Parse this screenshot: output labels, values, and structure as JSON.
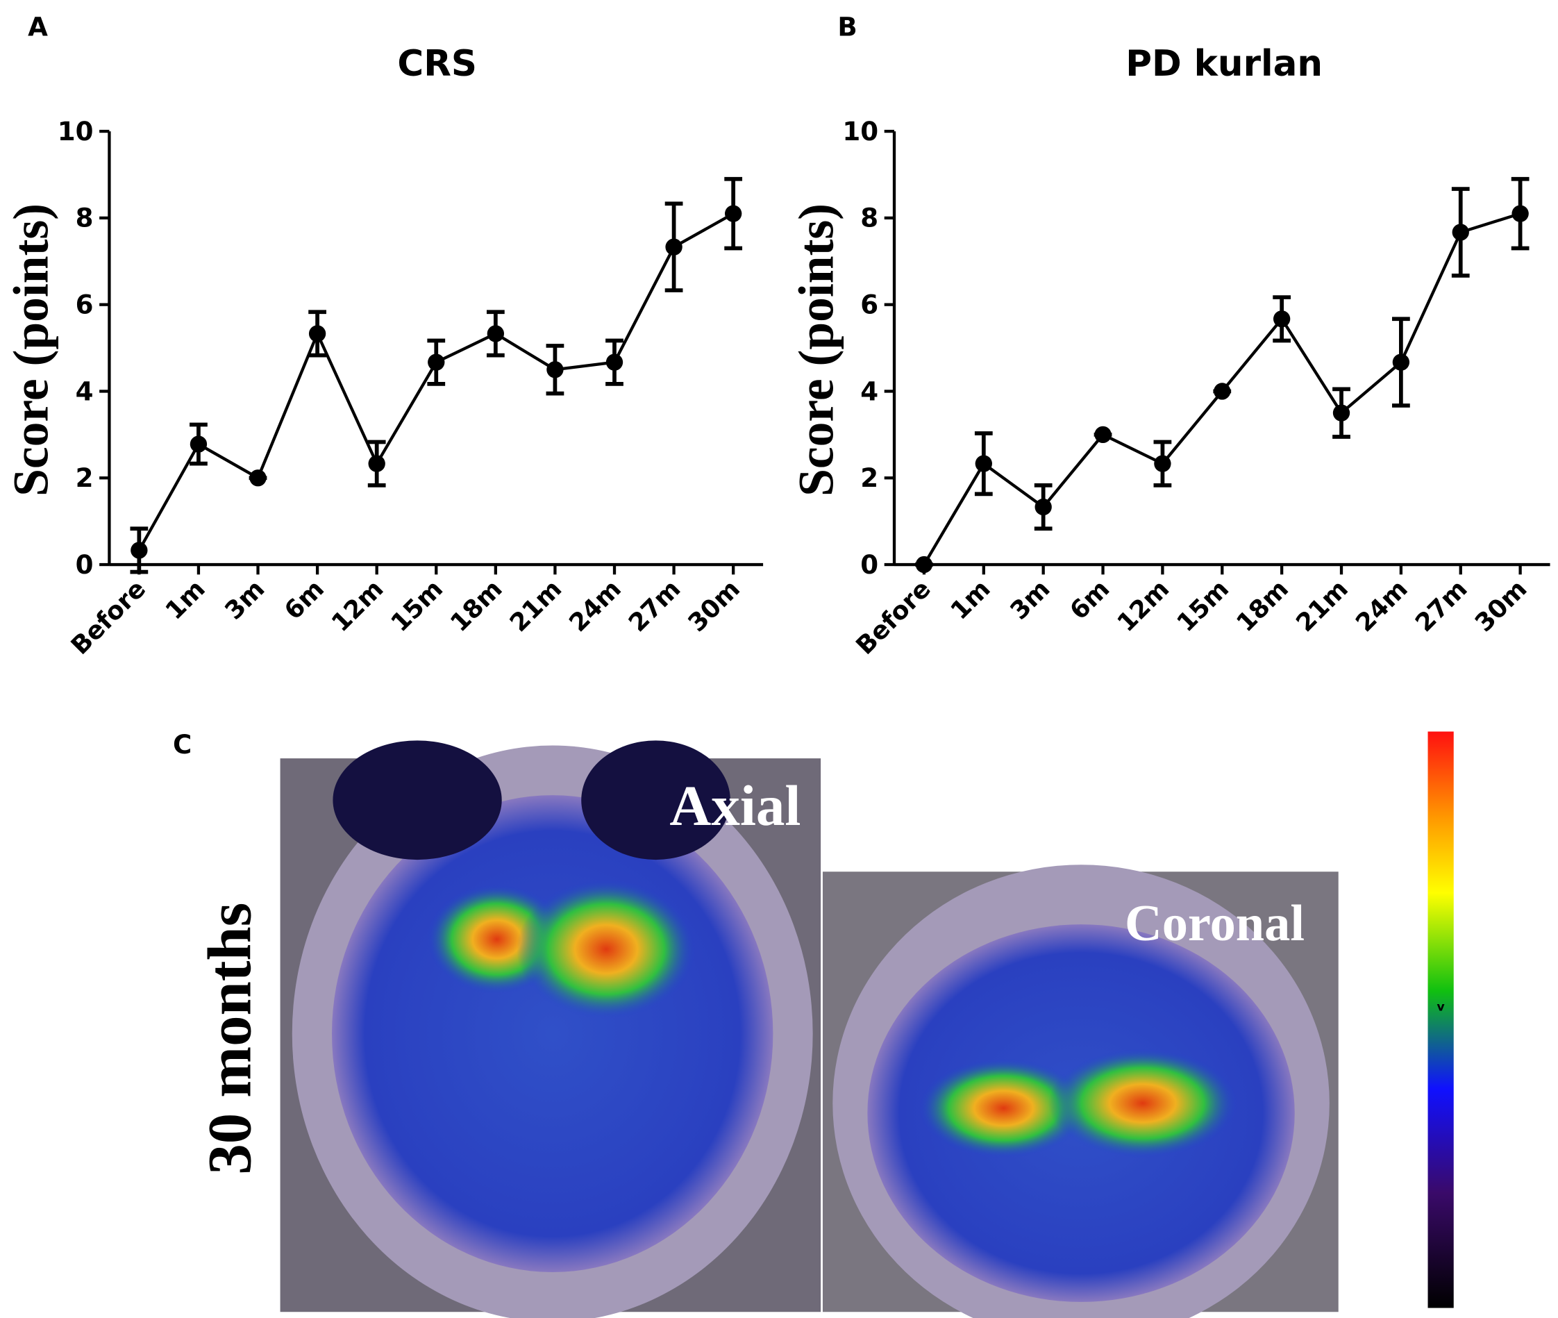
{
  "chart_data": [
    {
      "type": "line",
      "panel_label": "A",
      "title": "CRS",
      "y_label": "Score (points)",
      "categories": [
        "Before",
        "1m",
        "3m",
        "6m",
        "12m",
        "15m",
        "18m",
        "21m",
        "24m",
        "27m",
        "30m"
      ],
      "values": [
        0.33,
        2.78,
        2.0,
        5.33,
        2.33,
        4.67,
        5.33,
        4.5,
        4.67,
        7.33,
        8.1
      ],
      "errors": [
        0.5,
        0.45,
        0,
        0.5,
        0.5,
        0.5,
        0.5,
        0.55,
        0.5,
        1.0,
        0.8
      ],
      "color": "#000000",
      "ylim": [
        0,
        10
      ],
      "yticks": [
        0,
        2,
        4,
        6,
        8,
        10
      ]
    },
    {
      "type": "line",
      "panel_label": "B",
      "title": "PD kurlan",
      "y_label": "Score (points)",
      "categories": [
        "Before",
        "1m",
        "3m",
        "6m",
        "12m",
        "15m",
        "18m",
        "21m",
        "24m",
        "27m",
        "30m"
      ],
      "values": [
        0,
        2.33,
        1.33,
        3.0,
        2.33,
        4.0,
        5.67,
        3.5,
        4.67,
        7.67,
        8.1
      ],
      "errors": [
        0,
        0.7,
        0.5,
        0,
        0.5,
        0,
        0.5,
        0.55,
        1.0,
        1.0,
        0.8
      ],
      "color": "#000000",
      "ylim": [
        0,
        10
      ],
      "yticks": [
        0,
        2,
        4,
        6,
        8,
        10
      ]
    }
  ],
  "panel_c": {
    "panel_label": "C",
    "row_label": "30 months",
    "views": [
      "Axial",
      "Coronal"
    ],
    "colorbar_mark": "v"
  }
}
